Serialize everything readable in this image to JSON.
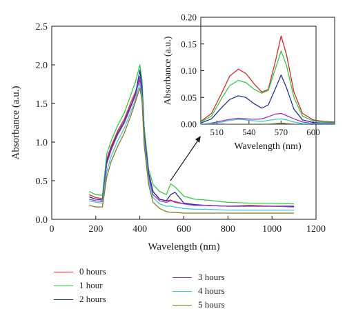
{
  "chart_data": [
    {
      "id": "main",
      "type": "line",
      "xlabel": "Wavelength (nm)",
      "ylabel": "Absorbance (a.u.)",
      "xlim": [
        0,
        1200
      ],
      "ylim": [
        0,
        2.5
      ],
      "xticks": [
        "0",
        "200",
        "400",
        "600",
        "800",
        "1000",
        "1200"
      ],
      "yticks": [
        "0.0",
        "0.5",
        "1.0",
        "1.5",
        "2.0",
        "2.5"
      ],
      "series": [
        {
          "name": "0 hours",
          "color": "#d62728",
          "x": [
            170,
            200,
            230,
            250,
            270,
            300,
            330,
            360,
            380,
            400,
            410,
            420,
            440,
            460,
            490,
            520,
            540,
            560,
            600,
            650,
            700,
            800,
            900,
            1000,
            1100
          ],
          "y": [
            0.32,
            0.28,
            0.27,
            0.78,
            0.95,
            1.15,
            1.3,
            1.52,
            1.65,
            1.8,
            1.65,
            1.1,
            0.6,
            0.36,
            0.26,
            0.24,
            0.25,
            0.22,
            0.2,
            0.18,
            0.18,
            0.17,
            0.18,
            0.17,
            0.17
          ]
        },
        {
          "name": "1 hour",
          "color": "#2ecc40",
          "x": [
            170,
            200,
            230,
            250,
            270,
            300,
            330,
            360,
            380,
            400,
            410,
            420,
            440,
            460,
            490,
            520,
            540,
            560,
            600,
            650,
            700,
            800,
            900,
            1000,
            1100
          ],
          "y": [
            0.36,
            0.32,
            0.31,
            0.85,
            1.02,
            1.22,
            1.38,
            1.62,
            1.78,
            2.0,
            1.8,
            1.2,
            0.65,
            0.45,
            0.36,
            0.32,
            0.46,
            0.42,
            0.3,
            0.26,
            0.25,
            0.22,
            0.21,
            0.21,
            0.2
          ]
        },
        {
          "name": "2 hours",
          "color": "#1f2fa8",
          "x": [
            170,
            200,
            230,
            250,
            270,
            300,
            330,
            360,
            380,
            400,
            410,
            420,
            440,
            460,
            490,
            520,
            540,
            560,
            600,
            650,
            700,
            800,
            900,
            1000,
            1100
          ],
          "y": [
            0.29,
            0.26,
            0.25,
            0.75,
            0.92,
            1.12,
            1.27,
            1.48,
            1.62,
            1.93,
            1.7,
            1.1,
            0.6,
            0.36,
            0.26,
            0.24,
            0.32,
            0.35,
            0.21,
            0.19,
            0.18,
            0.17,
            0.17,
            0.17,
            0.17
          ]
        },
        {
          "name": "3 hours",
          "color": "#9b30c9",
          "x": [
            170,
            200,
            230,
            250,
            270,
            300,
            330,
            360,
            380,
            400,
            410,
            420,
            440,
            460,
            490,
            520,
            540,
            560,
            600,
            650,
            700,
            800,
            900,
            1000,
            1100
          ],
          "y": [
            0.26,
            0.24,
            0.23,
            0.72,
            0.9,
            1.1,
            1.25,
            1.46,
            1.6,
            1.85,
            1.62,
            1.05,
            0.55,
            0.32,
            0.24,
            0.22,
            0.24,
            0.23,
            0.2,
            0.18,
            0.18,
            0.17,
            0.17,
            0.17,
            0.16
          ]
        },
        {
          "name": "4 hours",
          "color": "#33ccdd",
          "x": [
            170,
            200,
            230,
            250,
            270,
            300,
            330,
            360,
            380,
            400,
            410,
            420,
            440,
            460,
            490,
            520,
            540,
            560,
            600,
            650,
            700,
            800,
            900,
            1000,
            1100
          ],
          "y": [
            0.24,
            0.22,
            0.21,
            0.62,
            0.82,
            1.02,
            1.18,
            1.4,
            1.55,
            1.76,
            1.58,
            1.0,
            0.5,
            0.28,
            0.2,
            0.17,
            0.17,
            0.16,
            0.14,
            0.13,
            0.13,
            0.12,
            0.12,
            0.12,
            0.12
          ]
        },
        {
          "name": "5 hours",
          "color": "#8b7a1a",
          "x": [
            170,
            200,
            230,
            250,
            270,
            300,
            330,
            360,
            380,
            400,
            410,
            420,
            440,
            460,
            490,
            520,
            540,
            560,
            600,
            650,
            700,
            800,
            900,
            1000,
            1100
          ],
          "y": [
            0.18,
            0.16,
            0.16,
            0.55,
            0.75,
            0.95,
            1.12,
            1.35,
            1.52,
            1.7,
            1.52,
            0.95,
            0.45,
            0.22,
            0.14,
            0.1,
            0.09,
            0.09,
            0.08,
            0.08,
            0.08,
            0.08,
            0.08,
            0.08,
            0.08
          ]
        }
      ]
    },
    {
      "id": "inset",
      "type": "line",
      "xlabel": "Wavelength (nm)",
      "ylabel": "Absorbance (a.u.)",
      "xlim": [
        495,
        620
      ],
      "ylim": [
        0,
        0.2
      ],
      "xticks": [
        "510",
        "540",
        "570",
        "600"
      ],
      "yticks": [
        "0.00",
        "0.05",
        "0.10",
        "0.15",
        "0.20"
      ],
      "series": [
        {
          "name": "0 hours",
          "color": "#d62728",
          "x": [
            495,
            505,
            515,
            522,
            530,
            537,
            545,
            552,
            558,
            565,
            570,
            575,
            582,
            590,
            600,
            610,
            620
          ],
          "y": [
            0.005,
            0.02,
            0.06,
            0.09,
            0.103,
            0.095,
            0.075,
            0.06,
            0.065,
            0.12,
            0.165,
            0.13,
            0.06,
            0.02,
            0.008,
            0.005,
            0.004
          ]
        },
        {
          "name": "1 hour",
          "color": "#2ecc40",
          "x": [
            495,
            505,
            515,
            522,
            530,
            537,
            545,
            552,
            558,
            565,
            570,
            575,
            582,
            590,
            600,
            610,
            620
          ],
          "y": [
            0.004,
            0.015,
            0.05,
            0.072,
            0.082,
            0.078,
            0.065,
            0.058,
            0.063,
            0.105,
            0.137,
            0.11,
            0.05,
            0.015,
            0.006,
            0.004,
            0.003
          ]
        },
        {
          "name": "2 hours",
          "color": "#1f2fa8",
          "x": [
            495,
            505,
            515,
            522,
            530,
            537,
            545,
            552,
            558,
            565,
            570,
            575,
            582,
            590,
            600,
            610,
            620
          ],
          "y": [
            0.002,
            0.01,
            0.032,
            0.046,
            0.053,
            0.05,
            0.038,
            0.03,
            0.036,
            0.068,
            0.092,
            0.068,
            0.028,
            0.008,
            0.003,
            0.002,
            0.002
          ]
        },
        {
          "name": "3 hours",
          "color": "#9b30c9",
          "x": [
            495,
            505,
            515,
            522,
            530,
            537,
            545,
            552,
            558,
            565,
            570,
            575,
            582,
            590,
            600,
            610,
            620
          ],
          "y": [
            0.0,
            0.002,
            0.006,
            0.009,
            0.011,
            0.01,
            0.009,
            0.01,
            0.014,
            0.019,
            0.02,
            0.016,
            0.01,
            0.004,
            0.001,
            0.0,
            0.0
          ]
        },
        {
          "name": "4 hours",
          "color": "#33ccdd",
          "x": [
            495,
            505,
            515,
            522,
            530,
            537,
            545,
            552,
            558,
            565,
            570,
            575,
            582,
            590,
            600,
            610,
            620
          ],
          "y": [
            0.0,
            0.001,
            0.004,
            0.007,
            0.009,
            0.008,
            0.006,
            0.005,
            0.007,
            0.009,
            0.01,
            0.008,
            0.004,
            0.001,
            0.0,
            0.0,
            0.0
          ]
        },
        {
          "name": "5 hours",
          "color": "#8b7a1a",
          "x": [
            495,
            505,
            515,
            522,
            530,
            537,
            545,
            552,
            558,
            565,
            570,
            575,
            582,
            590,
            600,
            610,
            620
          ],
          "y": [
            -0.002,
            -0.002,
            -0.001,
            0.0,
            0.0,
            0.0,
            0.0,
            0.0,
            0.0,
            0.001,
            0.002,
            0.001,
            0.0,
            -0.001,
            -0.002,
            -0.002,
            -0.002
          ]
        }
      ]
    }
  ]
}
